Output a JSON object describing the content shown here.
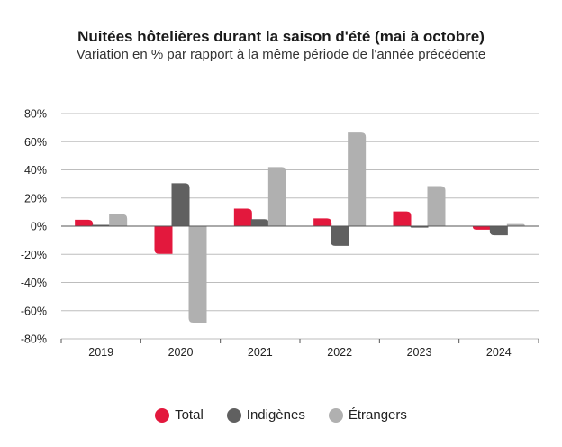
{
  "title": "Nuitées hôtelières durant la saison d'été (mai à octobre)",
  "subtitle": "Variation en % par rapport à la même période de l'année précédente",
  "colors": {
    "total": "#e3183d",
    "indigenes": "#606060",
    "etrangers": "#b0b0b0",
    "grid": "#bdbdbd",
    "axis": "#555555"
  },
  "chart_data": {
    "type": "bar",
    "categories": [
      "2019",
      "2020",
      "2021",
      "2022",
      "2023",
      "2024"
    ],
    "series": [
      {
        "name": "Total",
        "color": "#e3183d",
        "values": [
          4.6,
          -19.7,
          12.5,
          5.5,
          10.5,
          -2.5
        ]
      },
      {
        "name": "Indigènes",
        "color": "#606060",
        "values": [
          1.0,
          30.5,
          5.0,
          -14.0,
          -1.0,
          -6.5
        ]
      },
      {
        "name": "Étrangers",
        "color": "#b0b0b0",
        "values": [
          8.5,
          -68.5,
          42.0,
          66.5,
          28.5,
          1.5
        ]
      }
    ],
    "ylim": [
      -80,
      80
    ],
    "yticks": [
      80,
      60,
      40,
      20,
      0,
      -20,
      -40,
      -60,
      -80
    ],
    "ytick_labels": [
      "80%",
      "60%",
      "40%",
      "20%",
      "0%",
      "-20%",
      "-40%",
      "-60%",
      "-80%"
    ],
    "grid": true,
    "legend": "bottom-center"
  },
  "legend": {
    "items": [
      {
        "label": "Total",
        "color": "#e3183d"
      },
      {
        "label": "Indigènes",
        "color": "#606060"
      },
      {
        "label": "Étrangers",
        "color": "#b0b0b0"
      }
    ]
  }
}
